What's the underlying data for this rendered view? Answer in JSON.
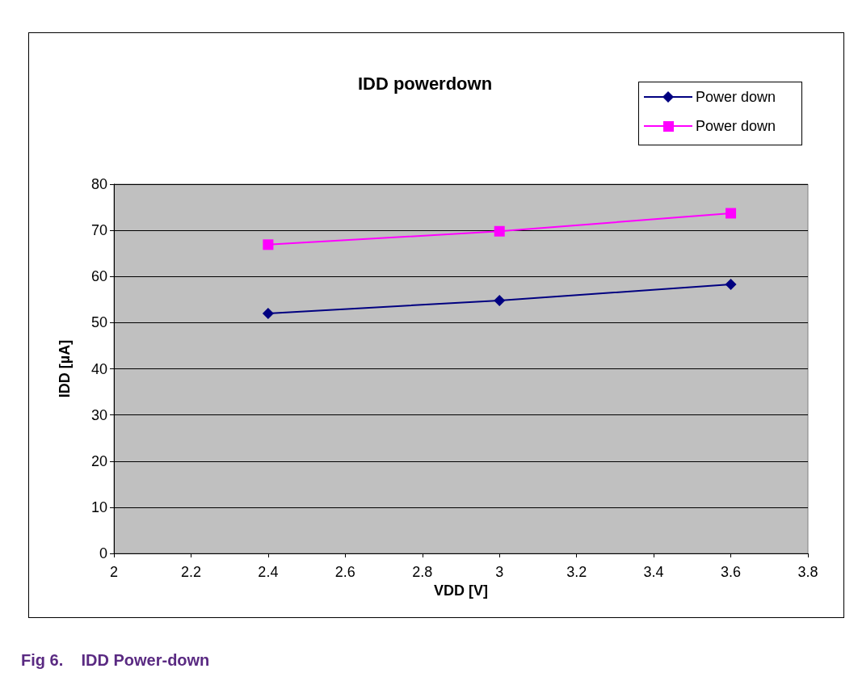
{
  "chart_data": {
    "type": "line",
    "title": "IDD powerdown",
    "xlabel": "VDD [V]",
    "ylabel": "IDD [µA]",
    "annotations": [
      "Fig 6.    IDD Power-down"
    ],
    "x": [
      2.4,
      3,
      3.6
    ],
    "series": [
      {
        "name": "Power down",
        "color": "#000080",
        "marker": "diamond",
        "values": [
          52.0,
          54.8,
          58.3
        ]
      },
      {
        "name": "Power down",
        "color": "#ff00ff",
        "marker": "square",
        "values": [
          66.9,
          69.8,
          73.7
        ]
      }
    ],
    "xlim": [
      2,
      3.8
    ],
    "xticks": [
      2,
      2.2,
      2.4,
      2.6,
      2.8,
      3,
      3.2,
      3.4,
      3.6,
      3.8
    ],
    "ylim": [
      0,
      80
    ],
    "yticks": [
      0,
      10,
      20,
      30,
      40,
      50,
      60,
      70,
      80
    ],
    "grid": "y",
    "legend": "top right",
    "line_style": "solid"
  }
}
